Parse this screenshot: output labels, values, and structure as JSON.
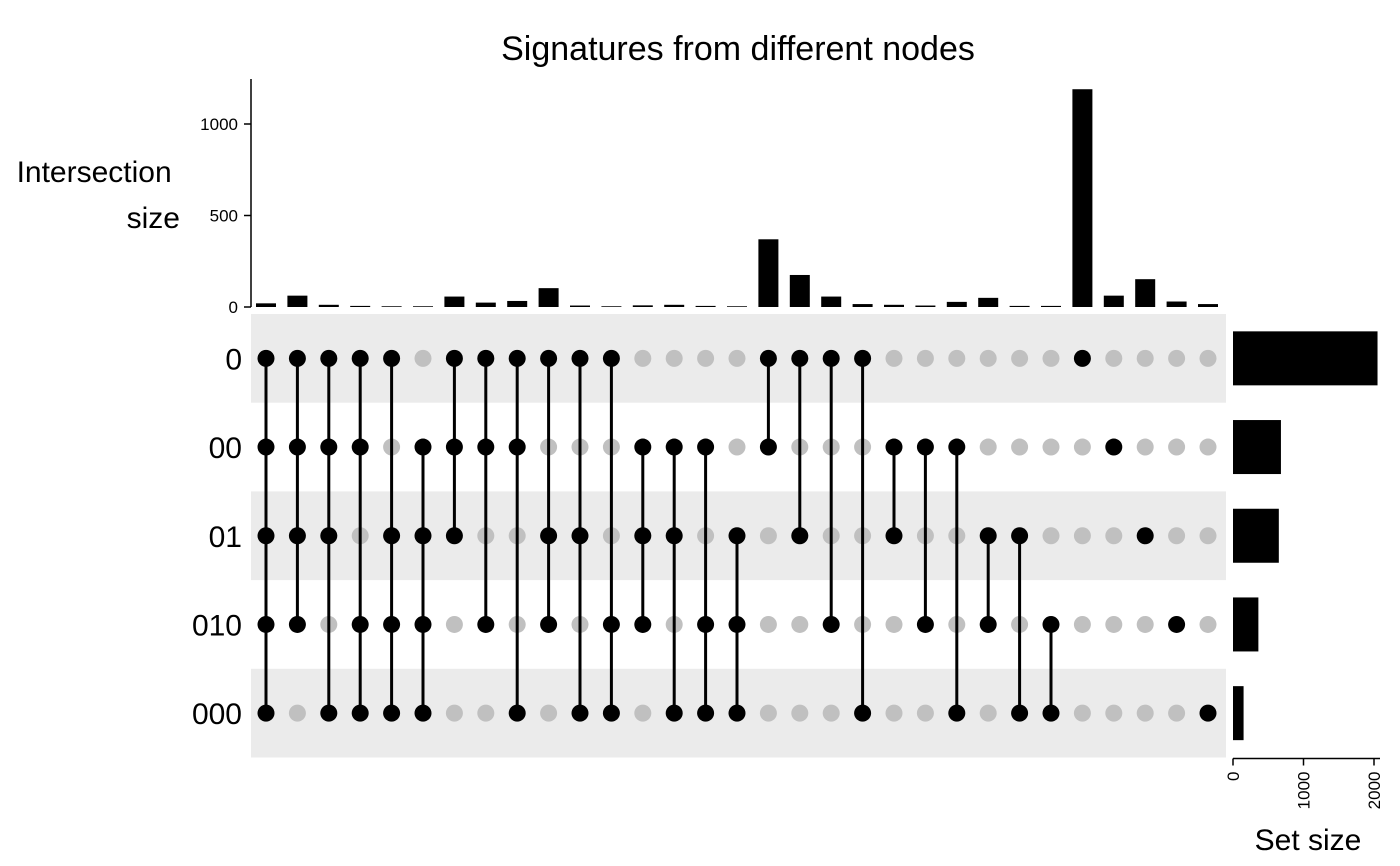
{
  "chart_data": {
    "type": "upset",
    "title": "Signatures from different nodes",
    "intersection_axis": {
      "label": [
        "Intersection",
        "size"
      ],
      "ticks": [
        0,
        500,
        1000
      ],
      "ylim": [
        0,
        1250
      ]
    },
    "set_axis": {
      "label": "Set size",
      "ticks": [
        0,
        1000,
        2000
      ],
      "xlim": [
        0,
        2100
      ]
    },
    "sets": [
      {
        "name": "0",
        "size": 2050
      },
      {
        "name": "00",
        "size": 680
      },
      {
        "name": "01",
        "size": 650
      },
      {
        "name": "010",
        "size": 360
      },
      {
        "name": "000",
        "size": 150
      }
    ],
    "intersections": [
      {
        "members": [
          "0",
          "00",
          "01",
          "010",
          "000"
        ],
        "size": 20
      },
      {
        "members": [
          "0",
          "00",
          "01",
          "010"
        ],
        "size": 62
      },
      {
        "members": [
          "0",
          "00",
          "01",
          "000"
        ],
        "size": 12
      },
      {
        "members": [
          "0",
          "00",
          "010",
          "000"
        ],
        "size": 6
      },
      {
        "members": [
          "0",
          "01",
          "010",
          "000"
        ],
        "size": 4
      },
      {
        "members": [
          "00",
          "01",
          "010",
          "000"
        ],
        "size": 4
      },
      {
        "members": [
          "0",
          "00",
          "01"
        ],
        "size": 57
      },
      {
        "members": [
          "0",
          "00",
          "010"
        ],
        "size": 24
      },
      {
        "members": [
          "0",
          "00",
          "000"
        ],
        "size": 33
      },
      {
        "members": [
          "0",
          "01",
          "010"
        ],
        "size": 103
      },
      {
        "members": [
          "0",
          "01",
          "000"
        ],
        "size": 8
      },
      {
        "members": [
          "0",
          "010",
          "000"
        ],
        "size": 4
      },
      {
        "members": [
          "00",
          "01",
          "010"
        ],
        "size": 9
      },
      {
        "members": [
          "00",
          "01",
          "000"
        ],
        "size": 12
      },
      {
        "members": [
          "00",
          "010",
          "000"
        ],
        "size": 6
      },
      {
        "members": [
          "01",
          "010",
          "000"
        ],
        "size": 4
      },
      {
        "members": [
          "0",
          "00"
        ],
        "size": 370
      },
      {
        "members": [
          "0",
          "01"
        ],
        "size": 175
      },
      {
        "members": [
          "0",
          "010"
        ],
        "size": 57
      },
      {
        "members": [
          "0",
          "000"
        ],
        "size": 16
      },
      {
        "members": [
          "00",
          "01"
        ],
        "size": 12
      },
      {
        "members": [
          "00",
          "010"
        ],
        "size": 8
      },
      {
        "members": [
          "00",
          "000"
        ],
        "size": 28
      },
      {
        "members": [
          "01",
          "010"
        ],
        "size": 50
      },
      {
        "members": [
          "01",
          "000"
        ],
        "size": 6
      },
      {
        "members": [
          "010",
          "000"
        ],
        "size": 6
      },
      {
        "members": [
          "0"
        ],
        "size": 1190
      },
      {
        "members": [
          "00"
        ],
        "size": 62
      },
      {
        "members": [
          "01"
        ],
        "size": 152
      },
      {
        "members": [
          "010"
        ],
        "size": 30
      },
      {
        "members": [
          "000"
        ],
        "size": 16
      }
    ],
    "colors": {
      "bar": "#000000",
      "dot_active": "#000000",
      "dot_inactive": "#c0c0c0",
      "row_band": "#ebebeb"
    },
    "grid": false
  }
}
